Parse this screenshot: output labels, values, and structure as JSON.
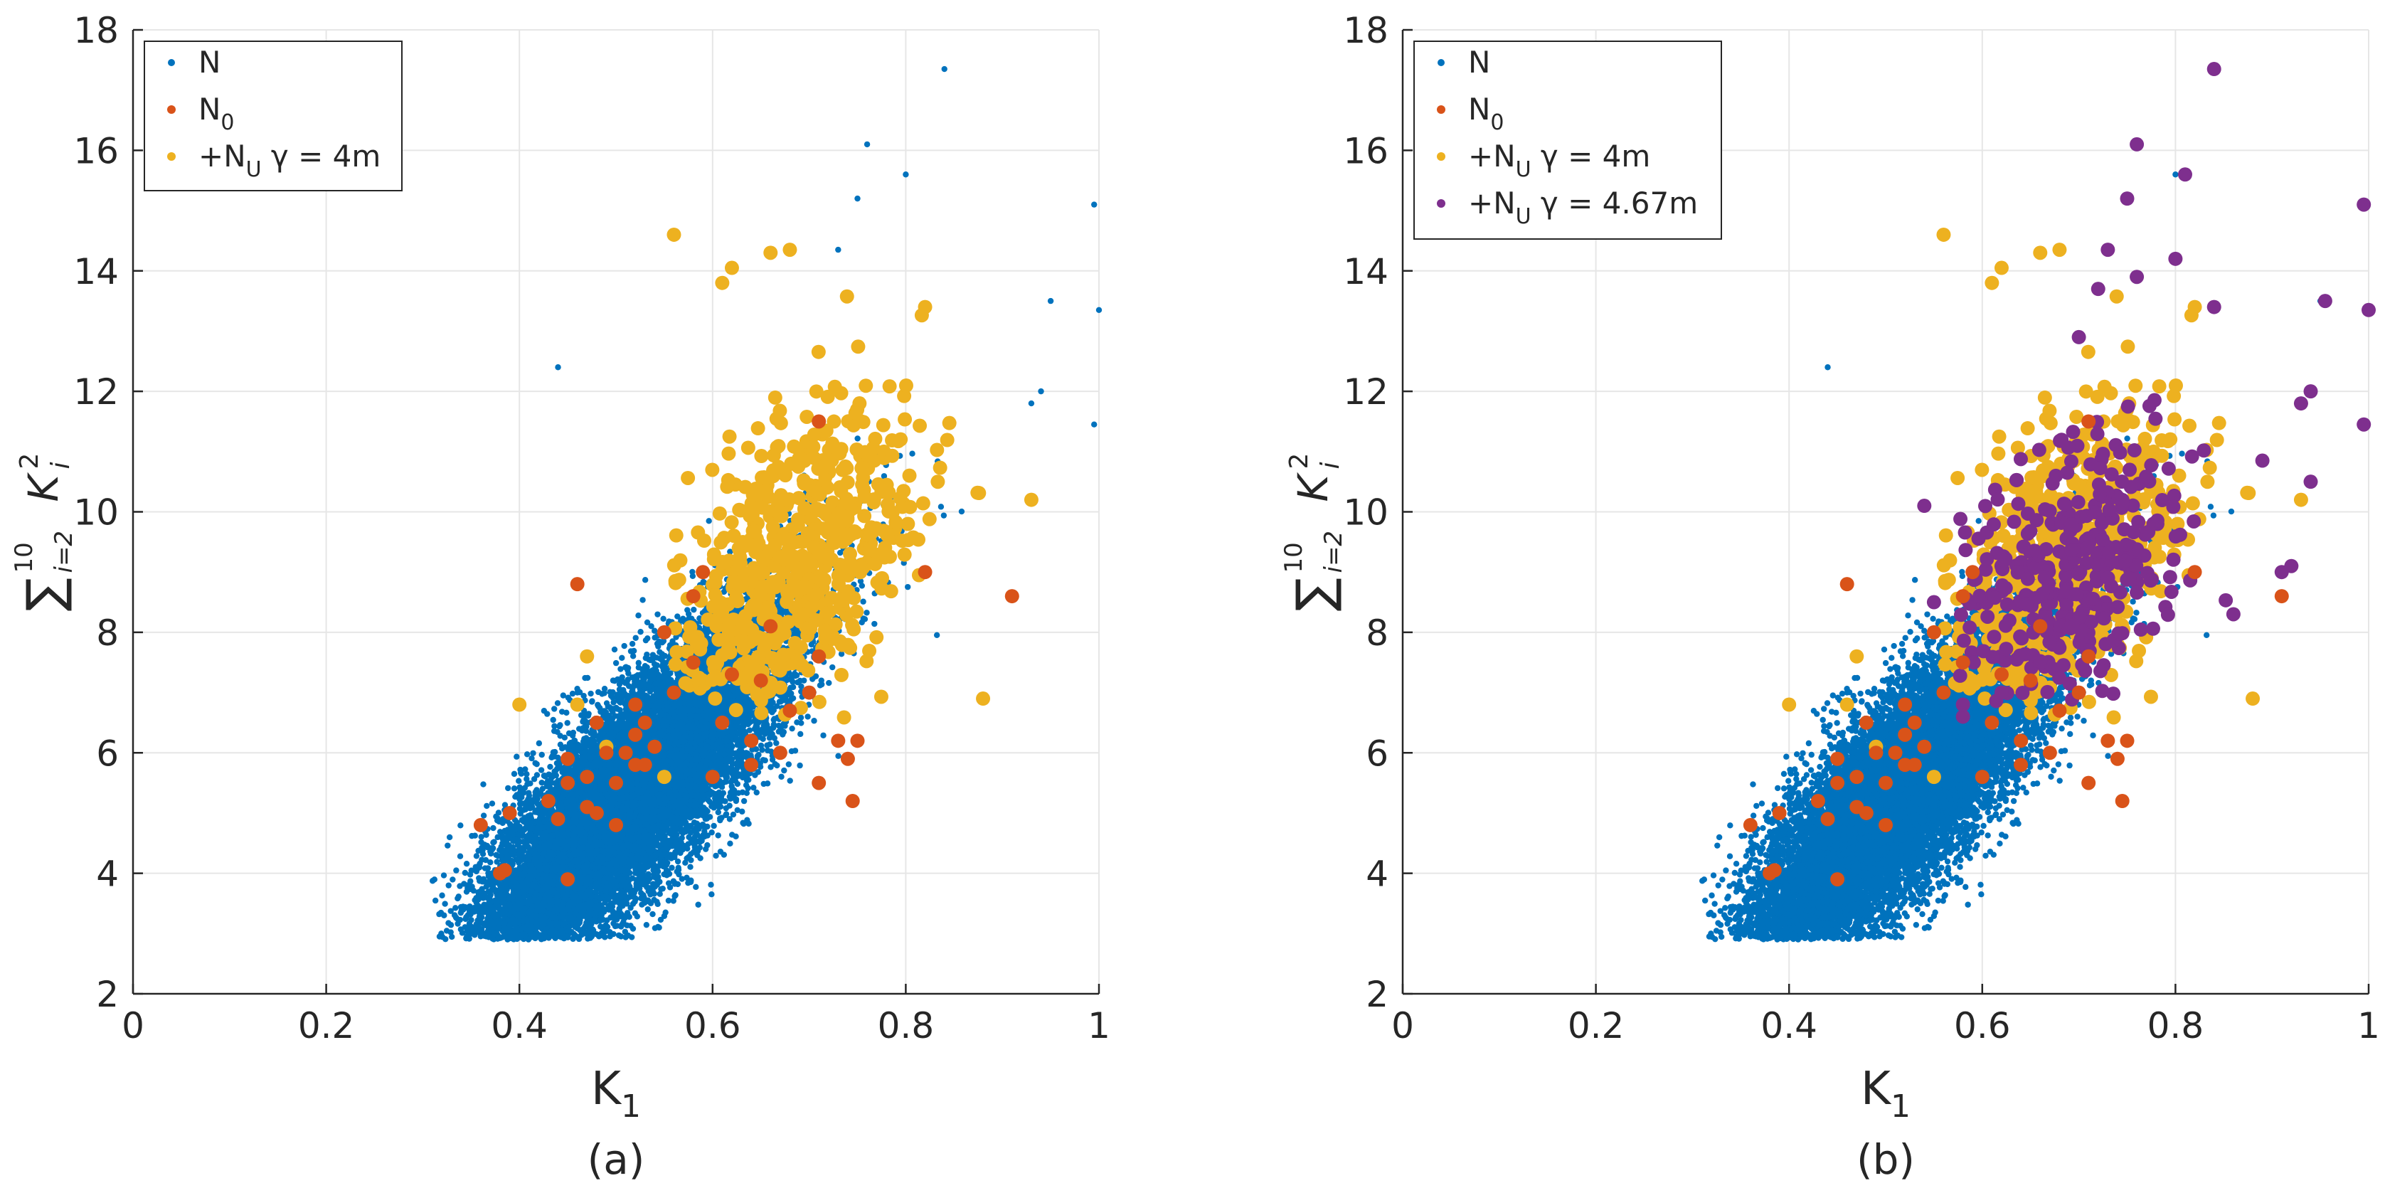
{
  "colors": {
    "N": "#0072BD",
    "N0": "#D95319",
    "NU_4": "#EDB120",
    "NU_467": "#7E2F8E",
    "axis": "#262626",
    "grid": "#e6e6e6",
    "legend_border": "#262626"
  },
  "legend_text": {
    "N": "N",
    "N0_base": "N",
    "N0_sub": "0",
    "NU_prefix": "+N",
    "NU_sub": "U",
    "NU_gamma": "γ = 4m",
    "NU2_gamma": "γ = 4.67m"
  },
  "chart_data": [
    {
      "type": "scatter",
      "panel_label": "(a)",
      "xlabel_base": "K",
      "xlabel_sub": "1",
      "ylabel": "∑10i=2 Ki²",
      "ylabel_parts": {
        "sigma": "∑",
        "upper": "10",
        "lower": "i=2",
        "var": "K",
        "sup": "2",
        "sub": "i"
      },
      "xlim": [
        0,
        1
      ],
      "ylim": [
        2,
        18
      ],
      "xticks": [
        "0",
        "0.2",
        "0.4",
        "0.6",
        "0.8",
        "1"
      ],
      "yticks": [
        "2",
        "4",
        "6",
        "8",
        "10",
        "12",
        "14",
        "16",
        "18"
      ],
      "grid": true,
      "legend_position": "top-left",
      "series": [
        {
          "name": "N",
          "generated": true,
          "count": 14000,
          "description": "dense population, correlated cloud roughly from K1=0.3 to 0.85, y from 3 to 12"
        },
        {
          "name": "N0",
          "points": [
            [
              0.36,
              4.8
            ],
            [
              0.38,
              4.0
            ],
            [
              0.385,
              4.05
            ],
            [
              0.39,
              5.0
            ],
            [
              0.44,
              4.9
            ],
            [
              0.45,
              3.9
            ],
            [
              0.45,
              5.5
            ],
            [
              0.45,
              5.9
            ],
            [
              0.46,
              8.8
            ],
            [
              0.47,
              5.1
            ],
            [
              0.48,
              5.0
            ],
            [
              0.48,
              6.5
            ],
            [
              0.49,
              6.0
            ],
            [
              0.5,
              4.8
            ],
            [
              0.5,
              5.5
            ],
            [
              0.51,
              6.0
            ],
            [
              0.52,
              5.8
            ],
            [
              0.52,
              6.3
            ],
            [
              0.53,
              5.8
            ],
            [
              0.53,
              6.5
            ],
            [
              0.54,
              6.1
            ],
            [
              0.55,
              8.0
            ],
            [
              0.56,
              7.0
            ],
            [
              0.58,
              7.5
            ],
            [
              0.58,
              8.6
            ],
            [
              0.59,
              9.0
            ],
            [
              0.6,
              5.6
            ],
            [
              0.61,
              6.5
            ],
            [
              0.62,
              7.3
            ],
            [
              0.64,
              5.8
            ],
            [
              0.64,
              6.2
            ],
            [
              0.65,
              7.2
            ],
            [
              0.67,
              6.0
            ],
            [
              0.68,
              6.7
            ],
            [
              0.7,
              7.0
            ],
            [
              0.71,
              5.5
            ],
            [
              0.71,
              11.5
            ],
            [
              0.73,
              6.2
            ],
            [
              0.74,
              5.9
            ],
            [
              0.745,
              5.2
            ],
            [
              0.75,
              6.2
            ],
            [
              0.82,
              9.0
            ],
            [
              0.91,
              8.6
            ],
            [
              0.71,
              7.6
            ],
            [
              0.66,
              8.1
            ],
            [
              0.52,
              6.8
            ],
            [
              0.43,
              5.2
            ],
            [
              0.47,
              5.6
            ]
          ]
        },
        {
          "name": "+NU γ = 4m",
          "generated": true,
          "count": 600,
          "extra_points": [
            [
              0.56,
              14.6
            ],
            [
              0.66,
              14.3
            ],
            [
              0.68,
              14.35
            ],
            [
              0.62,
              14.05
            ],
            [
              0.61,
              13.8
            ],
            [
              0.82,
              13.4
            ],
            [
              0.93,
              10.2
            ],
            [
              0.88,
              6.9
            ],
            [
              0.46,
              6.8
            ],
            [
              0.49,
              6.1
            ],
            [
              0.4,
              6.8
            ],
            [
              0.55,
              5.6
            ],
            [
              0.47,
              7.6
            ]
          ]
        }
      ]
    },
    {
      "type": "scatter",
      "panel_label": "(b)",
      "xlabel_base": "K",
      "xlabel_sub": "1",
      "ylabel": "∑10i=2 Ki²",
      "ylabel_parts": {
        "sigma": "∑",
        "upper": "10",
        "lower": "i=2",
        "var": "K",
        "sup": "2",
        "sub": "i"
      },
      "xlim": [
        0,
        1
      ],
      "ylim": [
        2,
        18
      ],
      "xticks": [
        "0",
        "0.2",
        "0.4",
        "0.6",
        "0.8",
        "1"
      ],
      "yticks": [
        "2",
        "4",
        "6",
        "8",
        "10",
        "12",
        "14",
        "16",
        "18"
      ],
      "grid": true,
      "legend_position": "top-left",
      "series": [
        {
          "name": "N",
          "generated": true,
          "count": 14000
        },
        {
          "name": "N0",
          "same_as_panel": "a"
        },
        {
          "name": "+NU γ = 4m",
          "same_as_panel": "a"
        },
        {
          "name": "+NU γ = 4.67m",
          "generated": true,
          "count": 320,
          "extra_points": [
            [
              0.84,
              17.35
            ],
            [
              0.76,
              16.1
            ],
            [
              0.81,
              15.6
            ],
            [
              0.75,
              15.2
            ],
            [
              0.8,
              14.2
            ],
            [
              0.73,
              14.35
            ],
            [
              0.76,
              13.9
            ],
            [
              0.72,
              13.7
            ],
            [
              0.7,
              12.9
            ],
            [
              0.955,
              13.5
            ],
            [
              0.995,
              15.1
            ],
            [
              1.0,
              13.35
            ],
            [
              0.93,
              11.8
            ],
            [
              0.94,
              12.0
            ],
            [
              0.995,
              11.45
            ],
            [
              0.91,
              9.0
            ],
            [
              0.92,
              9.1
            ],
            [
              0.89,
              10.85
            ],
            [
              0.94,
              10.5
            ],
            [
              0.84,
              13.4
            ],
            [
              0.54,
              10.1
            ],
            [
              0.55,
              8.5
            ],
            [
              0.58,
              6.6
            ],
            [
              0.58,
              6.8
            ],
            [
              0.62,
              7.0
            ],
            [
              0.86,
              8.3
            ]
          ]
        }
      ]
    }
  ]
}
